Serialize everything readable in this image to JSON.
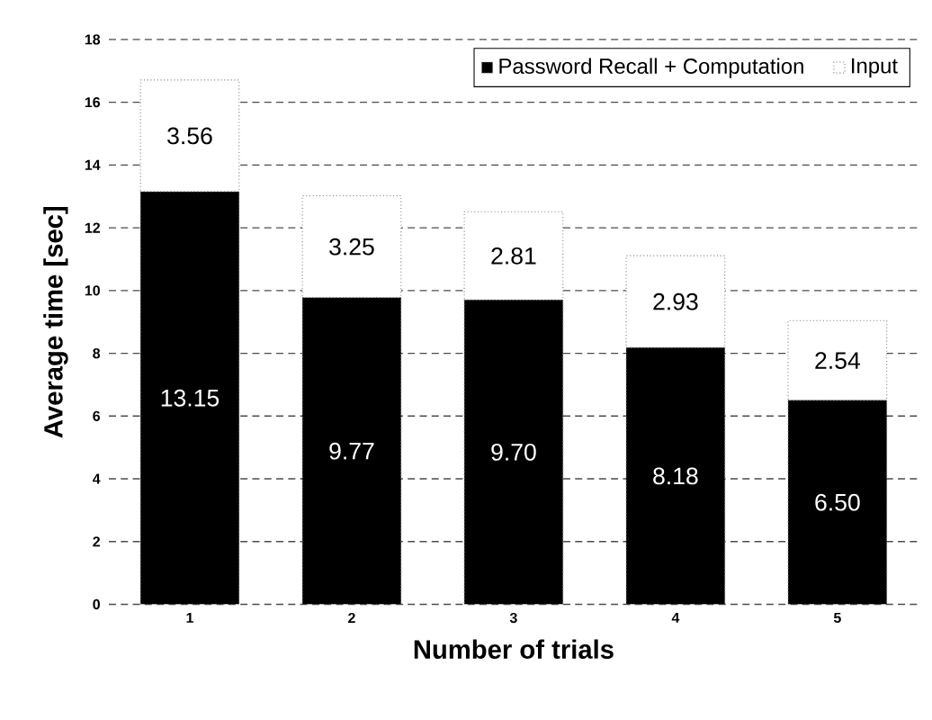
{
  "chart_data": {
    "type": "bar",
    "stacked": true,
    "xlabel": "Number of trials",
    "ylabel": "Average time [sec]",
    "categories": [
      "1",
      "2",
      "3",
      "4",
      "5"
    ],
    "series": [
      {
        "name": "Password Recall + Computation",
        "color": "#000000",
        "values": [
          13.15,
          9.77,
          9.7,
          8.18,
          6.5
        ],
        "value_labels": [
          "13.15",
          "9.77",
          "9.70",
          "8.18",
          "6.50"
        ]
      },
      {
        "name": "Input",
        "color": "#ffffff",
        "values": [
          3.56,
          3.25,
          2.81,
          2.93,
          2.54
        ],
        "value_labels": [
          "3.56",
          "3.25",
          "2.81",
          "2.93",
          "2.54"
        ]
      }
    ],
    "ylim": [
      0,
      18
    ],
    "yticks": [
      0,
      2,
      4,
      6,
      8,
      10,
      12,
      14,
      16,
      18
    ],
    "grid": "y",
    "legend": "top right"
  }
}
